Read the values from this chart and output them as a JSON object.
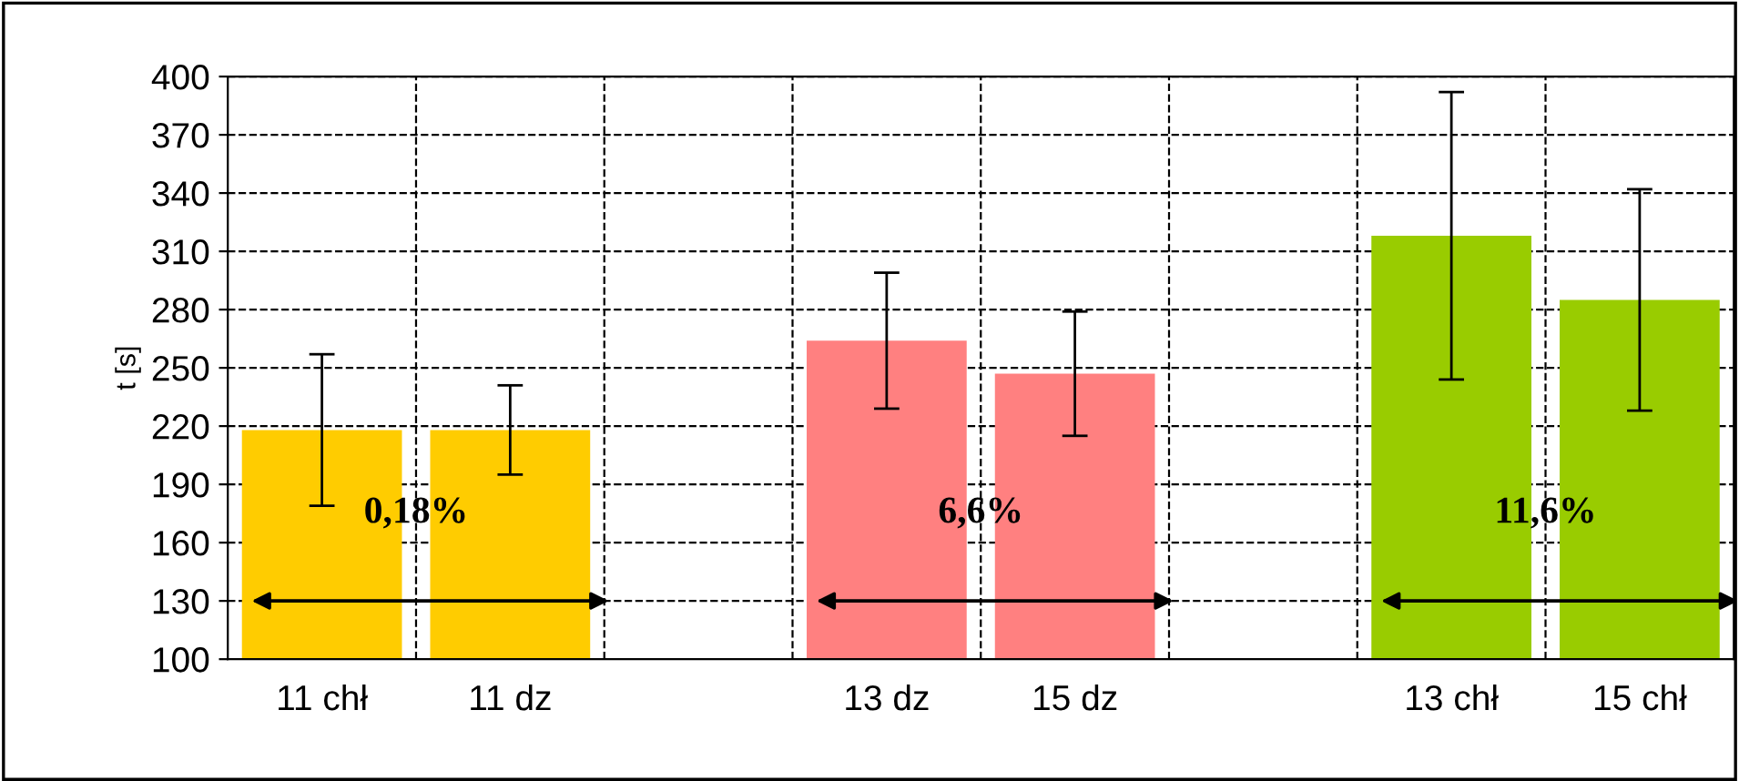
{
  "chart_data": {
    "type": "bar",
    "ylabel": "t [s]",
    "categories": [
      "11 chł",
      "11 dz",
      null,
      "13 dz",
      "15 dz",
      null,
      "13 chł",
      "15 chł"
    ],
    "values": [
      218,
      218,
      null,
      264,
      247,
      null,
      318,
      285
    ],
    "errors": [
      39,
      23,
      null,
      35,
      32,
      null,
      74,
      57
    ],
    "colors": [
      "#ffcc00",
      "#ffcc00",
      "#ffffff",
      "#ff8080",
      "#ff8080",
      "#ffffff",
      "#99cc00",
      "#99cc00"
    ],
    "ylim": [
      100,
      400
    ],
    "yticks": [
      100,
      130,
      160,
      190,
      220,
      250,
      280,
      310,
      340,
      370,
      400
    ],
    "grid": true,
    "annotations": [
      "0,18%",
      "6,6%",
      "11,6%"
    ]
  }
}
